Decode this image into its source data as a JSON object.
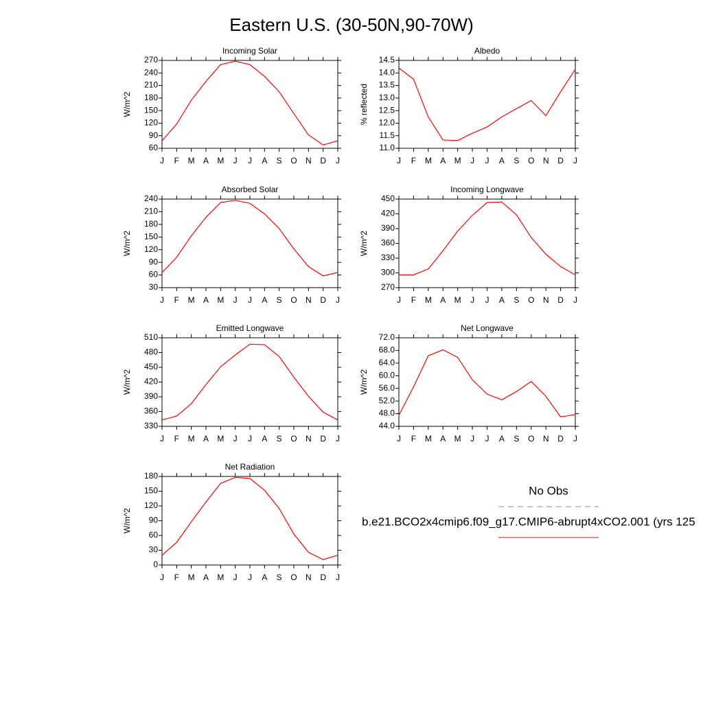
{
  "figure_title": "Eastern U.S. (30-50N,90-70W)",
  "legend": [
    {
      "name": "No Obs",
      "color": "#7f7fff",
      "line_style": "dashed"
    },
    {
      "name": "b.e21.BCO2x4cmip6.f09_g17.CMIP6-abrupt4xCO2.001 (yrs 125",
      "color": "#ff0000",
      "line_style": "solid"
    }
  ],
  "chart_data": [
    {
      "type": "line",
      "title": "Incoming Solar",
      "y_label": "W/m^2",
      "color": "#ff0000",
      "categories": [
        "J",
        "F",
        "M",
        "A",
        "M",
        "J",
        "J",
        "A",
        "S",
        "O",
        "N",
        "D",
        "J"
      ],
      "values": [
        78,
        118,
        175,
        220,
        260,
        268,
        260,
        232,
        195,
        143,
        92,
        68,
        78
      ],
      "ylim": [
        60,
        270
      ],
      "yticks": [
        60,
        90,
        120,
        150,
        180,
        210,
        240,
        270
      ]
    },
    {
      "type": "line",
      "title": "Albedo",
      "y_label": "% reflected",
      "color": "#ff0000",
      "categories": [
        "J",
        "F",
        "M",
        "A",
        "M",
        "J",
        "J",
        "A",
        "S",
        "O",
        "N",
        "D",
        "J"
      ],
      "values": [
        14.2,
        13.75,
        12.25,
        11.33,
        11.31,
        11.6,
        11.85,
        12.25,
        12.58,
        12.9,
        12.3,
        13.25,
        14.15
      ],
      "ylim": [
        11.0,
        14.5
      ],
      "yticks": [
        {
          "value": 11,
          "label": "11.0"
        },
        11.5,
        {
          "value": 12,
          "label": "12.0"
        },
        12.5,
        {
          "value": 13,
          "label": "13.0"
        },
        13.5,
        {
          "value": 14,
          "label": "14.0"
        },
        14.5
      ]
    },
    {
      "type": "line",
      "title": "Absorbed Solar",
      "y_label": "W/m^2",
      "color": "#ff0000",
      "categories": [
        "J",
        "F",
        "M",
        "A",
        "M",
        "J",
        "J",
        "A",
        "S",
        "O",
        "N",
        "D",
        "J"
      ],
      "values": [
        66,
        102,
        153,
        197,
        232,
        237,
        230,
        205,
        170,
        122,
        80,
        58,
        66
      ],
      "ylim": [
        30,
        240
      ],
      "yticks": [
        30,
        60,
        90,
        120,
        150,
        180,
        210,
        240
      ]
    },
    {
      "type": "line",
      "title": "Incoming Longwave",
      "y_label": "W/m^2",
      "color": "#ff0000",
      "categories": [
        "J",
        "F",
        "M",
        "A",
        "M",
        "J",
        "J",
        "A",
        "S",
        "O",
        "N",
        "D",
        "J"
      ],
      "values": [
        296,
        296,
        308,
        345,
        385,
        417,
        443,
        444,
        418,
        372,
        338,
        313,
        296
      ],
      "ylim": [
        270,
        450
      ],
      "yticks": [
        270,
        300,
        330,
        360,
        390,
        420,
        450
      ]
    },
    {
      "type": "line",
      "title": "Emitted Longwave",
      "y_label": "W/m^2",
      "color": "#ff0000",
      "categories": [
        "J",
        "F",
        "M",
        "A",
        "M",
        "J",
        "J",
        "A",
        "S",
        "O",
        "N",
        "D",
        "J"
      ],
      "values": [
        343,
        351,
        376,
        415,
        451,
        475,
        497,
        496,
        472,
        430,
        391,
        359,
        343
      ],
      "ylim": [
        330,
        510
      ],
      "yticks": [
        330,
        360,
        390,
        420,
        450,
        480,
        510
      ]
    },
    {
      "type": "line",
      "title": "Net Longwave",
      "y_label": "W/m^2",
      "color": "#ff0000",
      "categories": [
        "J",
        "F",
        "M",
        "A",
        "M",
        "J",
        "J",
        "A",
        "S",
        "O",
        "N",
        "D",
        "J"
      ],
      "values": [
        47.5,
        56.5,
        66.3,
        68.2,
        65.8,
        58.7,
        54.2,
        52.4,
        55,
        58.2,
        53.5,
        47,
        47.7
      ],
      "ylim": [
        44.0,
        72.0
      ],
      "yticks": [
        {
          "value": 44,
          "label": "44.0"
        },
        {
          "value": 48,
          "label": "48.0"
        },
        {
          "value": 52,
          "label": "52.0"
        },
        {
          "value": 56,
          "label": "56.0"
        },
        {
          "value": 60,
          "label": "60.0"
        },
        {
          "value": 64,
          "label": "64.0"
        },
        {
          "value": 68,
          "label": "68.0"
        },
        {
          "value": 72,
          "label": "72.0"
        }
      ]
    },
    {
      "type": "line",
      "title": "Net Radiation",
      "y_label": "W/m^2",
      "color": "#ff0000",
      "categories": [
        "J",
        "F",
        "M",
        "A",
        "M",
        "J",
        "J",
        "A",
        "S",
        "O",
        "N",
        "D",
        "J"
      ],
      "values": [
        20,
        46,
        88,
        128,
        166,
        178,
        176,
        152,
        115,
        63,
        26,
        11,
        20
      ],
      "ylim": [
        0,
        180
      ],
      "yticks": [
        0,
        30,
        60,
        90,
        120,
        150,
        180
      ]
    }
  ]
}
